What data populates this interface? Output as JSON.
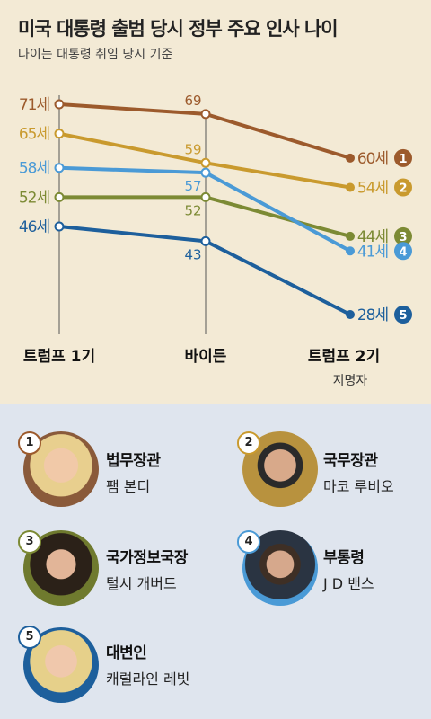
{
  "title": "미국 대통령 출범 당시 정부 주요 인사 나이",
  "subtitle": "나이는 대통령 취임 당시 기준",
  "chart_data": {
    "type": "line",
    "categories": [
      "트럼프 1기",
      "바이든",
      "트럼프 2기"
    ],
    "category_note": "지명자",
    "series": [
      {
        "id": "1",
        "values": [
          71,
          69,
          60
        ],
        "labels": [
          "71세",
          "69",
          "60세"
        ],
        "color": "#9c5a2c"
      },
      {
        "id": "2",
        "values": [
          65,
          59,
          54
        ],
        "labels": [
          "65세",
          "59",
          "54세"
        ],
        "color": "#c99a2e"
      },
      {
        "id": "3",
        "values": [
          52,
          52,
          44
        ],
        "labels": [
          "52세",
          "52",
          "44세"
        ],
        "color": "#7c8a34"
      },
      {
        "id": "4",
        "values": [
          58,
          57,
          41
        ],
        "labels": [
          "58세",
          "57",
          "41세"
        ],
        "color": "#4a9ad6"
      },
      {
        "id": "5",
        "values": [
          46,
          43,
          28
        ],
        "labels": [
          "46세",
          "43",
          "28세"
        ],
        "color": "#1d5f9c"
      }
    ]
  },
  "people": [
    {
      "num": "1",
      "role": "법무장관",
      "name": "팸 본디",
      "color": "#9c5a2c"
    },
    {
      "num": "2",
      "role": "국무장관",
      "name": "마코 루비오",
      "color": "#c99a2e"
    },
    {
      "num": "3",
      "role": "국가정보국장",
      "name": "털시 개버드",
      "color": "#7c8a34"
    },
    {
      "num": "4",
      "role": "부통령",
      "name": "J D 밴스",
      "color": "#4a9ad6"
    },
    {
      "num": "5",
      "role": "대변인",
      "name": "캐럴라인 레빗",
      "color": "#1d5f9c"
    }
  ]
}
